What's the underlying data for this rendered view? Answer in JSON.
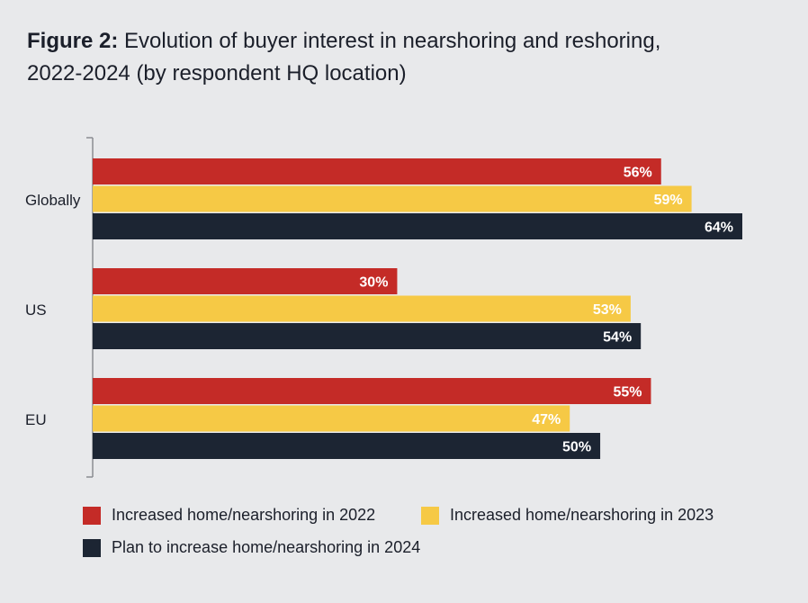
{
  "figure_label": "Figure 2:",
  "title_line1": "Evolution of buyer interest in nearshoring and reshoring,",
  "title_line2": "2022-2024 (by respondent HQ location)",
  "colors": {
    "series_2022": "#c42b27",
    "series_2023": "#f6c945",
    "series_2024": "#1c2533",
    "axis": "#8a8d92",
    "background": "#e8e9eb"
  },
  "chart_data": {
    "type": "bar",
    "orientation": "horizontal",
    "categories": [
      "Globally",
      "US",
      "EU"
    ],
    "series": [
      {
        "name": "Increased home/nearshoring in 2022",
        "values": [
          56,
          30,
          55
        ],
        "labels": [
          "56%",
          "30%",
          "55%"
        ]
      },
      {
        "name": "Increased home/nearshoring in 2023",
        "values": [
          59,
          53,
          47
        ],
        "labels": [
          "59%",
          "53%",
          "47%"
        ]
      },
      {
        "name": "Plan to increase home/nearshoring in 2024",
        "values": [
          64,
          54,
          50
        ],
        "labels": [
          "64%",
          "54%",
          "50%"
        ]
      }
    ],
    "xlim": [
      0,
      64
    ],
    "unit": "%",
    "grid": false,
    "legend_position": "bottom"
  }
}
